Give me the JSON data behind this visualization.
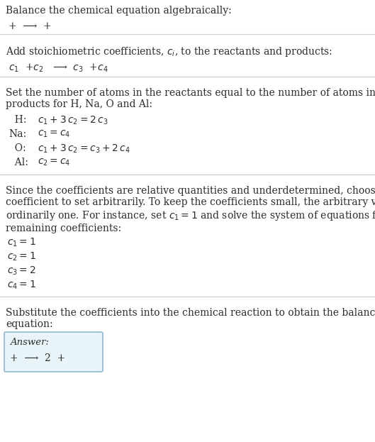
{
  "title": "Balance the chemical equation algebraically:",
  "line1": "+  ⟶  +",
  "section2_title": "Add stoichiometric coefficients, $c_i$, to the reactants and products:",
  "section2_eq": "$c_1$  +$c_2$   ⟶  $c_3$  +$c_4$",
  "section3_title": "Set the number of atoms in the reactants equal to the number of atoms in the\nproducts for H, Na, O and Al:",
  "section3_equations": [
    [
      "  H:",
      "$c_1 + 3\\,c_2 = 2\\,c_3$"
    ],
    [
      "Na:",
      "$c_1 = c_4$"
    ],
    [
      "  O:",
      "$c_1 + 3\\,c_2 = c_3 + 2\\,c_4$"
    ],
    [
      "  Al:",
      "$c_2 = c_4$"
    ]
  ],
  "section4_title": "Since the coefficients are relative quantities and underdetermined, choose a\ncoefficient to set arbitrarily. To keep the coefficients small, the arbitrary value is\nordinarily one. For instance, set $c_1 = 1$ and solve the system of equations for the\nremaining coefficients:",
  "section4_values": [
    "$c_1 = 1$",
    "$c_2 = 1$",
    "$c_3 = 2$",
    "$c_4 = 1$"
  ],
  "section5_title": "Substitute the coefficients into the chemical reaction to obtain the balanced\nequation:",
  "answer_label": "Answer:",
  "answer_eq": "+  ⟶  2  +",
  "bg_color": "#ffffff",
  "text_color": "#2b2b2b",
  "line_color": "#cccccc",
  "answer_box_color": "#e8f4f8",
  "answer_box_border": "#90b8cc",
  "fig_width": 5.29,
  "fig_height": 6.23,
  "dpi": 100
}
